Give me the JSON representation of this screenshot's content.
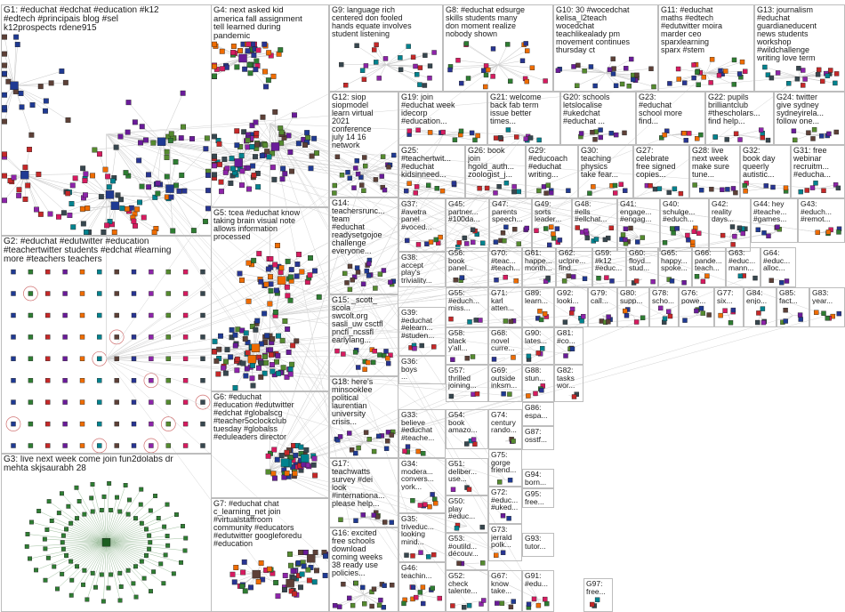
{
  "groups": [
    {
      "id": "G1",
      "label": "G1: #educhat #edchat #education #k12\n#edtech #principais blog #sel\nk12prospects rdene915"
    },
    {
      "id": "G2",
      "label": "G2: #educhat #edutwitter #education\n#teachertwitter students #edchat #learning\nmore #teachers teachers"
    },
    {
      "id": "G3",
      "label": "G3: live next week come join fun2dolabs dr\nmehta skjsaurabh 28"
    },
    {
      "id": "G4",
      "label": "G4: next asked kid\namerica fall assignment\ntell learned during\npandemic"
    },
    {
      "id": "G5",
      "label": "G5: tcea #educhat know\ntaking brain visual note\nallows information\nprocessed"
    },
    {
      "id": "G6",
      "label": "G6: #educhat\n#education #edutwitter\n#edchat #globalscg\n#teacher5oclockclub\ntuesday #globalss\n#eduleaders director"
    },
    {
      "id": "G7",
      "label": "G7: #educhat chat\nc_learning_net join\n#virtualstaffroom\ncommunity #educators\n#edutwitter googleforedu\n#education"
    },
    {
      "id": "G8",
      "label": "G8: #educhat edsurge\nskills students many\ndon moment realize\nnobody shown"
    },
    {
      "id": "G9",
      "label": "G9: language rich\ncentered don fooled\nhands equate involves\nstudent listening"
    },
    {
      "id": "G10",
      "label": "G10: 30 #wocedchat\nkelisa_l2teach\nwocedchat\nteachlikealady pm\nmovement continues\nthursday ct"
    },
    {
      "id": "G11",
      "label": "G11: #educhat\nmaths #edtech\n#edutwitter moira\nmarder ceo\nsparxlearning\nsparx #stem"
    },
    {
      "id": "G13",
      "label": "G13: journalism\n#educhat\nguardianeducent\nnews students\nworkshop\n#wildchallenge\nwriting love term"
    },
    {
      "id": "G12",
      "label": "G12: siop\nsiopmodel\nlearn virtual\n2021\nconference\njuly 14 16\nnetwork"
    },
    {
      "id": "G19",
      "label": "G19: join\n#educhat week\nidecorp\n#education..."
    },
    {
      "id": "G21",
      "label": "G21: welcome\nback fab term\nissue better\ntimes..."
    },
    {
      "id": "G20",
      "label": "G20: schools\nletslocalise\n#ukedchat\n#educhat ..."
    },
    {
      "id": "G23",
      "label": "G23:\n#educhat\nschool more\nfind..."
    },
    {
      "id": "G22",
      "label": "G22: pupils\nbrilliantclub\n#thescholars...\nfind help..."
    },
    {
      "id": "G24",
      "label": "G24: twitter\ngive sydney\nsydneyirela...\nfollow one..."
    },
    {
      "id": "G25",
      "label": "G25:\n#teachertwit...\n#educhat\nkidsinneed..."
    },
    {
      "id": "G26",
      "label": "G26: book\njoin\nhgold_auth...\nzoologist_j..."
    },
    {
      "id": "G29",
      "label": "G29:\n#educoach\n#educhat\nwriting..."
    },
    {
      "id": "G30",
      "label": "G30:\nteaching\nphysics\ntake fear..."
    },
    {
      "id": "G27",
      "label": "G27:\ncelebrate\nfree signed\ncopies..."
    },
    {
      "id": "G28",
      "label": "G28: live\nnext week\nmake sure\ntune..."
    },
    {
      "id": "G32",
      "label": "G32:\nbook day\nqueerly\nautistic..."
    },
    {
      "id": "G31",
      "label": "G31: free\nwebinar\nrecruitm...\n#educha..."
    },
    {
      "id": "G14",
      "label": "G14:\nteachersrunc...\nteam\n#educhat\nreadysetgojoe\nchallenge\neveryone..."
    },
    {
      "id": "G37",
      "label": "G37:\n#avetra\npanel\n#voced..."
    },
    {
      "id": "G45",
      "label": "G45:\npartner...\n#100da..."
    },
    {
      "id": "G47",
      "label": "G47:\nparents\nspeech..."
    },
    {
      "id": "G49",
      "label": "G49:\nsorts\nleader..."
    },
    {
      "id": "G48",
      "label": "G48:\n#ells\n#ellchat..."
    },
    {
      "id": "G41",
      "label": "G41:\nengage...\n#engag..."
    },
    {
      "id": "G40",
      "label": "G40:\nschulge...\n#educh..."
    },
    {
      "id": "G42",
      "label": "G42:\nreality\ndays..."
    },
    {
      "id": "G44",
      "label": "G44: hey\n#teache...\n#games..."
    },
    {
      "id": "G43",
      "label": "G43:\n#educh...\n#remot..."
    },
    {
      "id": "G38",
      "label": "G38:\naccept\nplay's\ntriviality..."
    },
    {
      "id": "G56",
      "label": "G56:\nbook\npanel..."
    },
    {
      "id": "G70",
      "label": "G70:\n#teac...\n#teach..."
    },
    {
      "id": "G61",
      "label": "G61:\nhappe...\nmonth..."
    },
    {
      "id": "G62",
      "label": "G62:\nuclpre...\nfind..."
    },
    {
      "id": "G59",
      "label": "G59:\n#k12\n#educ..."
    },
    {
      "id": "G60",
      "label": "G60:\nfloyd...\nstud..."
    },
    {
      "id": "G65",
      "label": "G65:\nhappy...\nspoke..."
    },
    {
      "id": "G66",
      "label": "G66:\npande...\nteach..."
    },
    {
      "id": "G63",
      "label": "G63:\n#educ...\nmann..."
    },
    {
      "id": "G64",
      "label": "G64:\n#educ...\nalloc..."
    },
    {
      "id": "G15",
      "label": "G15: _scott_\nscola\nswcolt.org\nsasli_uw csctfl\npncfl_ncssfl\nearlylang..."
    },
    {
      "id": "G55",
      "label": "G55:\n#educh...\nmiss..."
    },
    {
      "id": "G71",
      "label": "G71:\nkarl\natten..."
    },
    {
      "id": "G89",
      "label": "G89:\nlearn..."
    },
    {
      "id": "G92",
      "label": "G92:\nlooki..."
    },
    {
      "id": "G79",
      "label": "G79:\ncall..."
    },
    {
      "id": "G80",
      "label": "G80:\nsupp..."
    },
    {
      "id": "G78",
      "label": "G78:\nscho..."
    },
    {
      "id": "G76",
      "label": "G76:\npowe..."
    },
    {
      "id": "G77",
      "label": "G77:\nsix..."
    },
    {
      "id": "G84",
      "label": "G84:\nenjo..."
    },
    {
      "id": "G85",
      "label": "G85:\nfact..."
    },
    {
      "id": "G83",
      "label": "G83:\nyear..."
    },
    {
      "id": "G39",
      "label": "G39:\n#educhat\n#elearn...\n#studen..."
    },
    {
      "id": "G58",
      "label": "G58:\nblack\ny'all..."
    },
    {
      "id": "G68",
      "label": "G68:\nnovel\ncurre..."
    },
    {
      "id": "G90",
      "label": "G90:\nlates..."
    },
    {
      "id": "G81",
      "label": "G81:\n#co..."
    },
    {
      "id": "G36",
      "label": "G36:\nboys\n..."
    },
    {
      "id": "G57",
      "label": "G57:\nthrilled\njoining..."
    },
    {
      "id": "G69",
      "label": "G69:\noutside\ninksm..."
    },
    {
      "id": "G88",
      "label": "G88:\nstun..."
    },
    {
      "id": "G82",
      "label": "G82:\ntasks\nwor..."
    },
    {
      "id": "G18",
      "label": "G18: here's\nminsooklee\npolitical\nlaurentian\nuniversity\ncrisis..."
    },
    {
      "id": "G33",
      "label": "G33:\nbelieve\n#educhat\n#teache..."
    },
    {
      "id": "G54",
      "label": "G54:\nbook\namazo..."
    },
    {
      "id": "G74",
      "label": "G74:\ncentury\nrando..."
    },
    {
      "id": "G86",
      "label": "G86:\nespa..."
    },
    {
      "id": "G87",
      "label": "G87:\nosstf..."
    },
    {
      "id": "G17",
      "label": "G17:\nteachwatts\nsurvey #dei\nlook\n#internationa...\nplease help..."
    },
    {
      "id": "G34",
      "label": "G34:\nmodera...\nconvers...\nyork..."
    },
    {
      "id": "G51",
      "label": "G51:\ndeliber...\nuse..."
    },
    {
      "id": "G75",
      "label": "G75:\ngorge\nfriend..."
    },
    {
      "id": "G94",
      "label": "G94:\nborn..."
    },
    {
      "id": "G50",
      "label": "G50:\nplay\n#educ..."
    },
    {
      "id": "G72",
      "label": "G72:\n#educ...\n#uked..."
    },
    {
      "id": "G95",
      "label": "G95:\nfree..."
    },
    {
      "id": "G35",
      "label": "G35:\ntriveduc...\nlooking\nmind..."
    },
    {
      "id": "G53",
      "label": "G53:\n#outild...\ndécouv..."
    },
    {
      "id": "G73",
      "label": "G73:\njerrald\npolk..."
    },
    {
      "id": "G93",
      "label": "G93:\ntutor..."
    },
    {
      "id": "G16",
      "label": "G16: excited\nfree schools\ndownload\ncoming weeks\n38 ready use\npolicies..."
    },
    {
      "id": "G46",
      "label": "G46:\nteachin..."
    },
    {
      "id": "G52",
      "label": "G52:\ncheck\ntalente..."
    },
    {
      "id": "G67",
      "label": "G67:\nknow\ntake..."
    },
    {
      "id": "G91",
      "label": "G91:\n#edu..."
    },
    {
      "id": "G97",
      "label": "G97:\nfree..."
    }
  ]
}
